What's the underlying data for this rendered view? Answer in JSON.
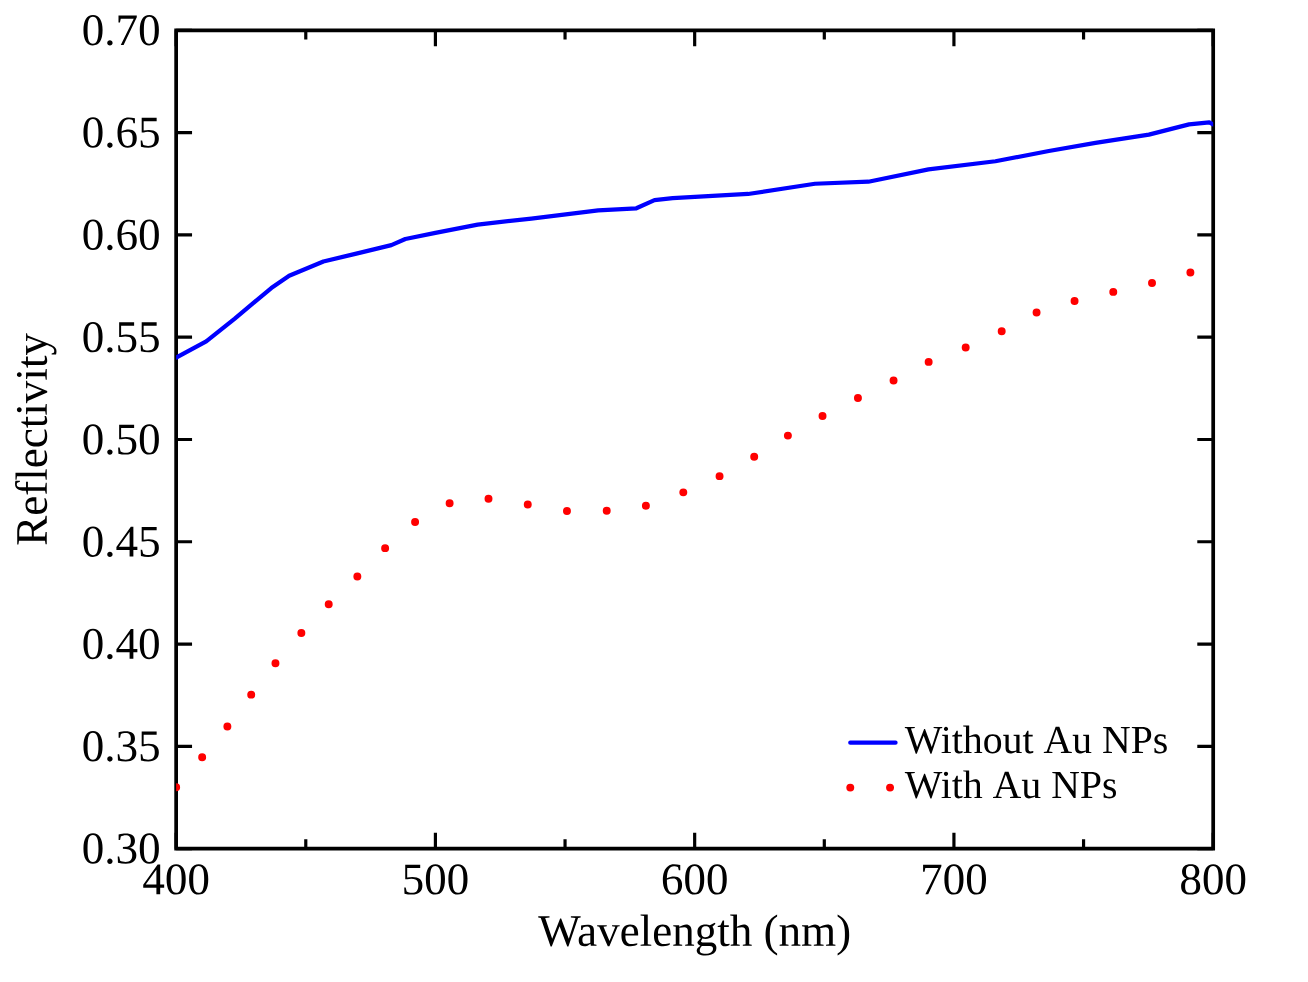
{
  "chart_data": {
    "type": "line",
    "xlabel": "Wavelength (nm)",
    "ylabel": "Reflectivity",
    "xlim": [
      400,
      800
    ],
    "xticks": [
      400,
      500,
      600,
      700,
      800
    ],
    "ylim": [
      0.3,
      0.7
    ],
    "yticks": [
      {
        "value": 0.3,
        "label": "0.30"
      },
      {
        "value": 0.35,
        "label": "0.35"
      },
      {
        "value": 0.4,
        "label": "0.40"
      },
      {
        "value": 0.45,
        "label": "0.45"
      },
      {
        "value": 0.5,
        "label": "0.50"
      },
      {
        "value": 0.55,
        "label": "0.55"
      },
      {
        "value": 0.6,
        "label": "0.60"
      },
      {
        "value": 0.65,
        "label": "0.65"
      },
      {
        "value": 0.7,
        "label": "0.70"
      }
    ],
    "legend": "bottom right",
    "grid": false,
    "series": [
      {
        "name": "Without Au NPs",
        "color": "#0000ff",
        "line_style": "solid",
        "x": [
          400,
          411.6,
          422.5,
          436.7,
          443.6,
          456.8,
          469.9,
          483,
          488.4,
          500,
          516.3,
          537,
          562.8,
          577.5,
          584.5,
          591.5,
          620.6,
          646.4,
          667,
          690.2,
          716,
          736.6,
          754.6,
          775.2,
          790.7,
          798.5,
          800
        ],
        "values": [
          0.54,
          0.548,
          0.559,
          0.574,
          0.58,
          0.587,
          0.591,
          0.595,
          0.598,
          0.601,
          0.605,
          0.608,
          0.612,
          0.613,
          0.617,
          0.618,
          0.62,
          0.625,
          0.626,
          0.632,
          0.636,
          0.641,
          0.645,
          0.649,
          0.654,
          0.655,
          0.654
        ]
      },
      {
        "name": "With Au NPs",
        "color": "#ff0000",
        "line_style": "dotted",
        "x": [
          400,
          411.6,
          422.5,
          432.8,
          443.6,
          456.8,
          469.9,
          483,
          496.3,
          509.5,
          523.4,
          536.5,
          550.5,
          564.4,
          577.5,
          591.5,
          604.9,
          618.6,
          632,
          645.7,
          659.1,
          672.8,
          686.5,
          700.1,
          713.5,
          727.2,
          740.9,
          754.1,
          767.8,
          781.4,
          795.1
        ],
        "values": [
          0.33,
          0.347,
          0.364,
          0.382,
          0.399,
          0.417,
          0.433,
          0.45,
          0.464,
          0.471,
          0.471,
          0.468,
          0.465,
          0.465,
          0.466,
          0.472,
          0.479,
          0.488,
          0.499,
          0.509,
          0.518,
          0.526,
          0.536,
          0.543,
          0.549,
          0.56,
          0.566,
          0.57,
          0.574,
          0.578,
          0.583
        ]
      }
    ]
  }
}
